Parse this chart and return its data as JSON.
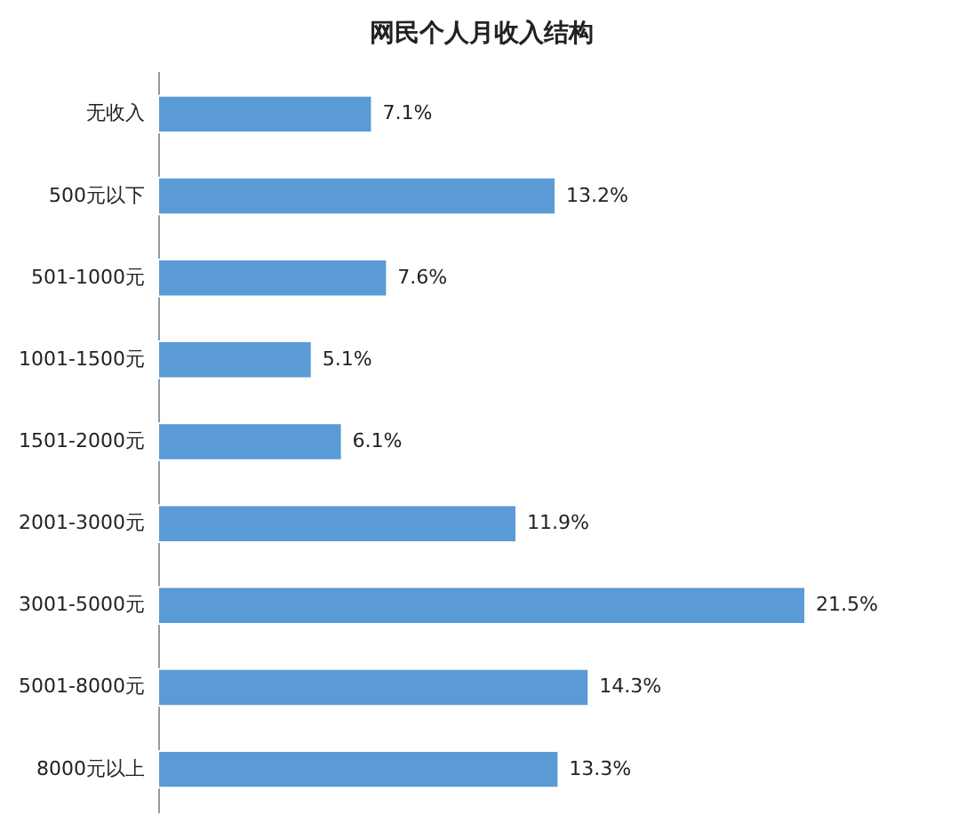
{
  "chart_data": {
    "type": "bar",
    "orientation": "horizontal",
    "title": "网民个人月收入结构",
    "categories": [
      "无收入",
      "500元以下",
      "501-1000元",
      "1001-1500元",
      "1501-2000元",
      "2001-3000元",
      "3001-5000元",
      "5001-8000元",
      "8000元以上"
    ],
    "values": [
      7.1,
      13.2,
      7.6,
      5.1,
      6.1,
      11.9,
      21.5,
      14.3,
      13.3
    ],
    "value_labels": [
      "7.1%",
      "13.2%",
      "7.6%",
      "5.1%",
      "6.1%",
      "11.9%",
      "21.5%",
      "14.3%",
      "13.3%"
    ],
    "color": "#5b9bd5"
  }
}
